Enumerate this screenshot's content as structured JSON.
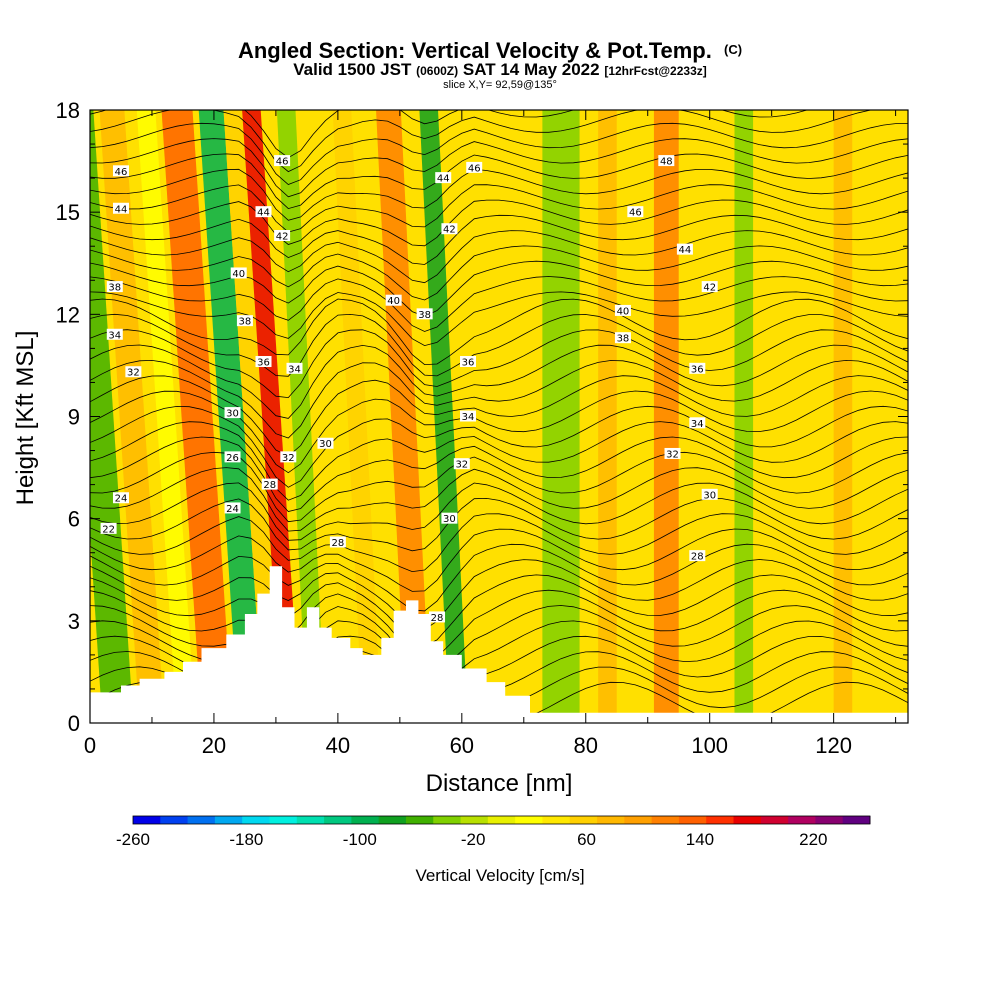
{
  "title": {
    "main": "Angled Section: Vertical Velocity & Pot.Temp.",
    "main_suffix": "(C)",
    "valid_prefix": "Valid 1500 JST",
    "valid_z": "(0600Z)",
    "valid_date": "SAT 14 May 2022",
    "forecast": "[12hrFcst@2233z]",
    "slice": "slice X,Y= 92,59@135°"
  },
  "chart_data": {
    "type": "heatmap",
    "xlabel": "Distance [nm]",
    "ylabel": "Height [Kft MSL]",
    "xlim": [
      0,
      132
    ],
    "ylim": [
      0,
      18
    ],
    "xticks": [
      "0",
      "20",
      "40",
      "60",
      "80",
      "100",
      "120"
    ],
    "yticks": [
      "0",
      "3",
      "6",
      "9",
      "12",
      "15",
      "18"
    ],
    "colorbar": {
      "label": "Vertical Velocity [cm/s]",
      "ticks": [
        "-260",
        "-180",
        "-100",
        "-20",
        "60",
        "140",
        "220"
      ],
      "range": [
        -260,
        260
      ],
      "colors": [
        "#0000e8",
        "#0040f0",
        "#0070f0",
        "#00a8f0",
        "#00d8f0",
        "#00f0e0",
        "#00e0b0",
        "#00c880",
        "#00b050",
        "#10a020",
        "#40b000",
        "#80d000",
        "#b8e000",
        "#e8f000",
        "#ffff00",
        "#ffe800",
        "#ffd000",
        "#ffb800",
        "#ffa000",
        "#ff8000",
        "#ff6000",
        "#ff3000",
        "#e80000",
        "#d00030",
        "#b00060",
        "#880070",
        "#600080"
      ]
    },
    "velocity_bands": [
      {
        "x": 2,
        "w": 5,
        "value": -60
      },
      {
        "x": 8,
        "w": 4,
        "value": 80
      },
      {
        "x": 14,
        "w": 3,
        "value": 20
      },
      {
        "x": 18,
        "w": 5,
        "value": 140
      },
      {
        "x": 24,
        "w": 4,
        "value": -100
      },
      {
        "x": 28,
        "w": 3,
        "value": 60
      },
      {
        "x": 31,
        "w": 3,
        "value": 180
      },
      {
        "x": 35,
        "w": 3,
        "value": -40
      },
      {
        "x": 44,
        "w": 3,
        "value": 60
      },
      {
        "x": 51,
        "w": 4,
        "value": 120
      },
      {
        "x": 58,
        "w": 3,
        "value": -80
      },
      {
        "x": 73,
        "w": 6,
        "value": -40
      },
      {
        "x": 82,
        "w": 3,
        "value": 80
      },
      {
        "x": 91,
        "w": 4,
        "value": 120
      },
      {
        "x": 104,
        "w": 3,
        "value": -30
      },
      {
        "x": 120,
        "w": 3,
        "value": 80
      }
    ],
    "terrain": [
      [
        0,
        0.9
      ],
      [
        5,
        0.9
      ],
      [
        5,
        1.1
      ],
      [
        8,
        1.1
      ],
      [
        8,
        1.3
      ],
      [
        12,
        1.3
      ],
      [
        12,
        1.5
      ],
      [
        15,
        1.5
      ],
      [
        15,
        1.8
      ],
      [
        18,
        1.8
      ],
      [
        18,
        2.2
      ],
      [
        22,
        2.2
      ],
      [
        22,
        2.6
      ],
      [
        25,
        2.6
      ],
      [
        25,
        3.2
      ],
      [
        27,
        3.2
      ],
      [
        27,
        3.8
      ],
      [
        29,
        3.8
      ],
      [
        29,
        4.6
      ],
      [
        31,
        4.6
      ],
      [
        31,
        3.4
      ],
      [
        33,
        3.4
      ],
      [
        33,
        2.8
      ],
      [
        35,
        2.8
      ],
      [
        35,
        3.4
      ],
      [
        37,
        3.4
      ],
      [
        37,
        2.8
      ],
      [
        39,
        2.8
      ],
      [
        39,
        2.5
      ],
      [
        42,
        2.5
      ],
      [
        42,
        2.2
      ],
      [
        44,
        2.2
      ],
      [
        44,
        2.0
      ],
      [
        47,
        2.0
      ],
      [
        47,
        2.5
      ],
      [
        49,
        2.5
      ],
      [
        49,
        3.3
      ],
      [
        51,
        3.3
      ],
      [
        51,
        3.6
      ],
      [
        53,
        3.6
      ],
      [
        53,
        3.2
      ],
      [
        55,
        3.2
      ],
      [
        55,
        2.4
      ],
      [
        57,
        2.4
      ],
      [
        57,
        2.0
      ],
      [
        60,
        2.0
      ],
      [
        60,
        1.6
      ],
      [
        64,
        1.6
      ],
      [
        64,
        1.2
      ],
      [
        67,
        1.2
      ],
      [
        67,
        0.8
      ],
      [
        71,
        0.8
      ],
      [
        71,
        0.3
      ],
      [
        132,
        0.3
      ]
    ],
    "contour_labels": [
      {
        "text": "46",
        "x": 5,
        "y": 16.2
      },
      {
        "text": "44",
        "x": 5,
        "y": 15.1
      },
      {
        "text": "38",
        "x": 4,
        "y": 12.8
      },
      {
        "text": "34",
        "x": 4,
        "y": 11.4
      },
      {
        "text": "32",
        "x": 7,
        "y": 10.3
      },
      {
        "text": "24",
        "x": 5,
        "y": 6.6
      },
      {
        "text": "22",
        "x": 3,
        "y": 5.7
      },
      {
        "text": "40",
        "x": 24,
        "y": 13.2
      },
      {
        "text": "38",
        "x": 25,
        "y": 11.8
      },
      {
        "text": "44",
        "x": 28,
        "y": 15.0
      },
      {
        "text": "46",
        "x": 31,
        "y": 16.5
      },
      {
        "text": "42",
        "x": 31,
        "y": 14.3
      },
      {
        "text": "36",
        "x": 28,
        "y": 10.6
      },
      {
        "text": "34",
        "x": 33,
        "y": 10.4
      },
      {
        "text": "30",
        "x": 23,
        "y": 9.1
      },
      {
        "text": "26",
        "x": 23,
        "y": 7.8
      },
      {
        "text": "24",
        "x": 23,
        "y": 6.3
      },
      {
        "text": "32",
        "x": 32,
        "y": 7.8
      },
      {
        "text": "28",
        "x": 29,
        "y": 7.0
      },
      {
        "text": "30",
        "x": 38,
        "y": 8.2
      },
      {
        "text": "28",
        "x": 40,
        "y": 5.3
      },
      {
        "text": "40",
        "x": 49,
        "y": 12.4
      },
      {
        "text": "38",
        "x": 54,
        "y": 12.0
      },
      {
        "text": "44",
        "x": 57,
        "y": 16.0
      },
      {
        "text": "46",
        "x": 62,
        "y": 16.3
      },
      {
        "text": "42",
        "x": 58,
        "y": 14.5
      },
      {
        "text": "36",
        "x": 61,
        "y": 10.6
      },
      {
        "text": "34",
        "x": 61,
        "y": 9.0
      },
      {
        "text": "32",
        "x": 60,
        "y": 7.6
      },
      {
        "text": "30",
        "x": 58,
        "y": 6.0
      },
      {
        "text": "28",
        "x": 56,
        "y": 3.1
      },
      {
        "text": "48",
        "x": 93,
        "y": 16.5
      },
      {
        "text": "46",
        "x": 88,
        "y": 15.0
      },
      {
        "text": "44",
        "x": 96,
        "y": 13.9
      },
      {
        "text": "42",
        "x": 100,
        "y": 12.8
      },
      {
        "text": "40",
        "x": 86,
        "y": 12.1
      },
      {
        "text": "38",
        "x": 86,
        "y": 11.3
      },
      {
        "text": "36",
        "x": 98,
        "y": 10.4
      },
      {
        "text": "34",
        "x": 98,
        "y": 8.8
      },
      {
        "text": "32",
        "x": 94,
        "y": 7.9
      },
      {
        "text": "30",
        "x": 100,
        "y": 6.7
      },
      {
        "text": "28",
        "x": 98,
        "y": 4.9
      }
    ],
    "grid": false,
    "legend": "bottom colorbar"
  }
}
